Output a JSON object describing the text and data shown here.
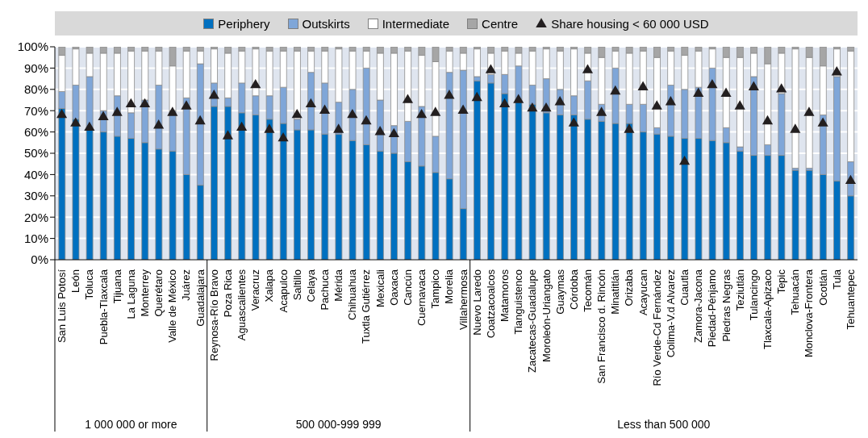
{
  "chart_data": {
    "type": "bar",
    "stacked": true,
    "grid": "y",
    "legend": "top",
    "categories": [
      "San Luis Potosí",
      "León",
      "Toluca",
      "Puebla-Tlaxcala",
      "Tijuana",
      "La Laguna",
      "Monterrey",
      "Querétaro",
      "Valle de México",
      "Juárez",
      "Guadalajara",
      "Reynosa-Río Bravo",
      "Poza Rica",
      "Aguascalientes",
      "Veracruz",
      "Xalapa",
      "Acapulco",
      "Saltillo",
      "Celaya",
      "Pachuca",
      "Mérida",
      "Chihuahua",
      "Tuxtla Gutiérrez",
      "Mexicali",
      "Oaxaca",
      "Cancún",
      "Cuernavaca",
      "Tampico",
      "Morelia",
      "Villahermosa",
      "Nuevo Laredo",
      "Coatzacoalcos",
      "Matamoros",
      "Tianguistenco",
      "Zacatecas-Guadalupe",
      "Moroleón-Uriangato",
      "Guaymas",
      "Córdoba",
      "Tecomán",
      "San Francisco d. Rincón",
      "Minatitlán",
      "Orizaba",
      "Acayucan",
      "Río Verde-Cd Fernández",
      "Colima-V.d Alvarez",
      "Cuautla",
      "Zamora-Jacona",
      "Piedad-Pénjamo",
      "Piedras Negras",
      "Teziutlán",
      "Tulancingo",
      "Tlaxcala-Apizaco",
      "Tepic",
      "Tehuacán",
      "Monclova-Frontera",
      "Ocotlán",
      "Tula",
      "Tehuantepec"
    ],
    "series": [
      {
        "name": "Periphery",
        "color": "#0070c0",
        "values": [
          71,
          66,
          61,
          60,
          58,
          57,
          55,
          52,
          51,
          40,
          35,
          72,
          72,
          69,
          68,
          66,
          64,
          61,
          61,
          59,
          59,
          56,
          54,
          51,
          50,
          46,
          44,
          41,
          38,
          24,
          84,
          83,
          78,
          74,
          73,
          69,
          68,
          68,
          66,
          65,
          64,
          64,
          60,
          59,
          58,
          57,
          57,
          56,
          55,
          51,
          49,
          49,
          49,
          42,
          42,
          40,
          37,
          30
        ]
      },
      {
        "name": "Outskirts",
        "color": "#7fa6d8",
        "values": [
          8,
          16,
          25,
          10,
          19,
          12,
          20,
          30,
          19,
          36,
          57,
          11,
          4,
          14,
          9,
          11,
          17,
          5,
          27,
          24,
          15,
          24,
          36,
          24,
          13,
          19,
          28,
          17,
          50,
          65,
          2,
          4,
          9,
          17,
          9,
          16,
          12,
          9,
          18,
          8,
          26,
          9,
          13,
          3,
          24,
          23,
          24,
          34,
          7,
          2,
          37,
          5,
          29,
          1,
          1,
          28,
          49,
          16
        ]
      },
      {
        "name": "Intermediate",
        "color": "#ffffff",
        "values": [
          17,
          17,
          11,
          27,
          20,
          29,
          23,
          16,
          21,
          22,
          6,
          16,
          21,
          15,
          22,
          21,
          17,
          32,
          10,
          15,
          25,
          18,
          8,
          22,
          34,
          33,
          24,
          35,
          10,
          8,
          13,
          10,
          11,
          6,
          16,
          14,
          18,
          22,
          13,
          22,
          8,
          24,
          25,
          33,
          16,
          16,
          17,
          9,
          33,
          42,
          11,
          38,
          19,
          56,
          52,
          23,
          13,
          52
        ]
      },
      {
        "name": "Centre",
        "color": "#a6a6a6",
        "values": [
          4,
          1,
          3,
          3,
          3,
          2,
          2,
          2,
          9,
          2,
          2,
          1,
          3,
          2,
          1,
          2,
          2,
          2,
          2,
          2,
          1,
          2,
          2,
          3,
          3,
          2,
          4,
          7,
          2,
          3,
          1,
          3,
          2,
          3,
          2,
          1,
          2,
          1,
          3,
          5,
          2,
          3,
          2,
          5,
          2,
          4,
          2,
          1,
          5,
          5,
          3,
          8,
          3,
          1,
          5,
          9,
          1,
          2
        ]
      },
      {
        "name": "Share housing < 60 000 USD",
        "type": "scatter",
        "marker": "triangle",
        "color": "#231f20",
        "values": [
          68,
          64,
          62,
          67,
          69,
          73,
          73,
          63,
          69,
          72,
          65,
          77,
          58,
          62,
          82,
          61,
          57,
          68,
          73,
          70,
          61,
          68,
          65,
          60,
          59,
          75,
          68,
          69,
          77,
          70,
          76,
          89,
          73,
          75,
          71,
          71,
          74,
          64,
          89,
          69,
          79,
          61,
          81,
          72,
          74,
          46,
          78,
          82,
          78,
          72,
          81,
          65,
          80,
          61,
          69,
          64,
          88,
          37
        ]
      }
    ],
    "ylim": [
      0,
      100
    ],
    "yticks": [
      {
        "value": 0,
        "label": "0%"
      },
      {
        "value": 10,
        "label": "10%"
      },
      {
        "value": 20,
        "label": "20%"
      },
      {
        "value": 30,
        "label": "30%"
      },
      {
        "value": 40,
        "label": "40%"
      },
      {
        "value": 50,
        "label": "50%"
      },
      {
        "value": 60,
        "label": "60%"
      },
      {
        "value": 70,
        "label": "70%"
      },
      {
        "value": 80,
        "label": "80%"
      },
      {
        "value": 90,
        "label": "90%"
      },
      {
        "value": 100,
        "label": "100%"
      }
    ],
    "annotations": [
      "1 000 000 or more",
      "500 000-999 999",
      "Less than 500 000"
    ]
  }
}
